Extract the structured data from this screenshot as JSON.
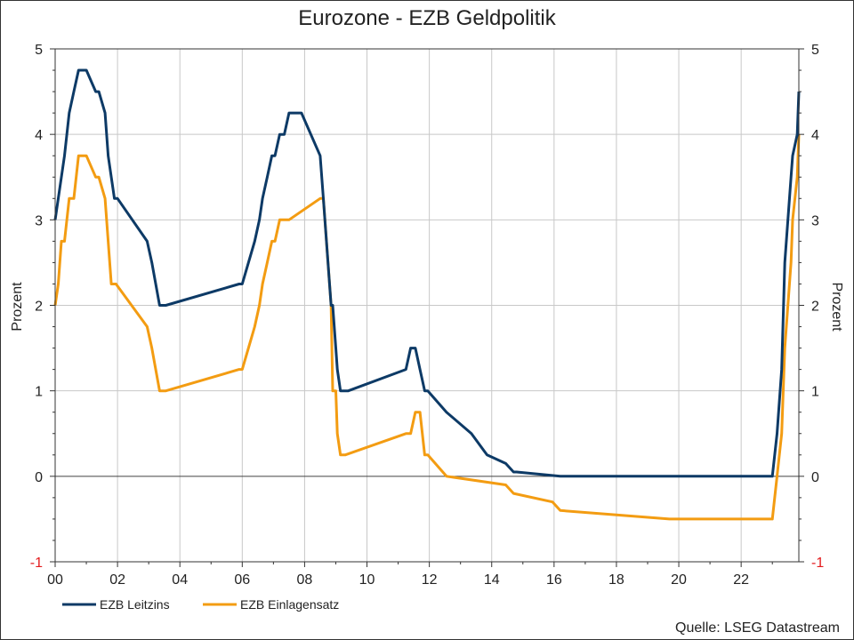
{
  "chart_data": {
    "type": "line",
    "title": "Eurozone - EZB Geldpolitik",
    "ylabel_left": "Prozent",
    "ylabel_right": "Prozent",
    "source": "Quelle: LSEG Datastream",
    "xlim": [
      2000.0,
      2023.85
    ],
    "ylim": [
      -1,
      5
    ],
    "x_ticks": [
      2000,
      2002,
      2004,
      2006,
      2008,
      2010,
      2012,
      2014,
      2016,
      2018,
      2020,
      2022
    ],
    "x_tick_labels": [
      "00",
      "02",
      "04",
      "06",
      "08",
      "10",
      "12",
      "14",
      "16",
      "18",
      "20",
      "22"
    ],
    "y_ticks": [
      -1,
      0,
      1,
      2,
      3,
      4,
      5
    ],
    "y_tick_labels": [
      "-1",
      "0",
      "1",
      "2",
      "3",
      "4",
      "5"
    ],
    "grid": true,
    "legend_position": "bottom-left",
    "colors": {
      "negative_tick": "#e31a1c",
      "grid": "#c8c8c8",
      "zero_line": "#404040"
    },
    "series": [
      {
        "name": "EZB Leitzins",
        "color": "#0d3a66",
        "x": [
          2000.0,
          2000.1,
          2000.2,
          2000.3,
          2000.45,
          2000.6,
          2000.75,
          2000.85,
          2001.0,
          2001.3,
          2001.4,
          2001.6,
          2001.7,
          2001.8,
          2001.9,
          2001.95,
          2002.0,
          2002.95,
          2003.1,
          2003.35,
          2003.5,
          2003.55,
          2005.9,
          2006.0,
          2006.2,
          2006.4,
          2006.55,
          2006.65,
          2006.8,
          2006.95,
          2007.05,
          2007.2,
          2007.35,
          2007.5,
          2007.65,
          2007.8,
          2007.9,
          2008.5,
          2008.6,
          2008.75,
          2008.85,
          2008.9,
          2009.0,
          2009.05,
          2009.15,
          2009.2,
          2009.3,
          2009.4,
          2011.25,
          2011.4,
          2011.55,
          2011.7,
          2011.85,
          2011.95,
          2012.55,
          2013.35,
          2013.85,
          2014.45,
          2014.7,
          2014.8,
          2016.2,
          2023.0,
          2023.15,
          2023.3,
          2023.4,
          2023.5,
          2023.6,
          2023.65,
          2023.8,
          2024.0
        ],
        "y": [
          3.0,
          3.25,
          3.5,
          3.75,
          4.25,
          4.5,
          4.75,
          4.75,
          4.75,
          4.5,
          4.5,
          4.25,
          3.75,
          3.5,
          3.25,
          3.25,
          3.25,
          2.75,
          2.5,
          2.0,
          2.0,
          2.0,
          2.25,
          2.25,
          2.5,
          2.75,
          3.0,
          3.25,
          3.5,
          3.75,
          3.75,
          4.0,
          4.0,
          4.25,
          4.25,
          4.25,
          4.25,
          3.75,
          3.25,
          2.5,
          2.0,
          2.0,
          1.5,
          1.25,
          1.0,
          1.0,
          1.0,
          1.0,
          1.25,
          1.5,
          1.5,
          1.25,
          1.0,
          1.0,
          0.75,
          0.5,
          0.25,
          0.15,
          0.05,
          0.05,
          0.0,
          0.0,
          0.5,
          1.25,
          2.5,
          3.0,
          3.5,
          3.75,
          4.0,
          4.5
        ]
      },
      {
        "name": "EZB Einlagensatz",
        "color": "#f39c12",
        "x": [
          2000.0,
          2000.1,
          2000.2,
          2000.3,
          2000.45,
          2000.6,
          2000.75,
          2001.0,
          2001.3,
          2001.4,
          2001.6,
          2001.7,
          2001.8,
          2001.95,
          2002.95,
          2003.1,
          2003.35,
          2003.55,
          2005.9,
          2006.0,
          2006.2,
          2006.4,
          2006.55,
          2006.65,
          2006.8,
          2006.95,
          2007.05,
          2007.2,
          2007.35,
          2007.5,
          2008.5,
          2008.6,
          2008.75,
          2008.85,
          2008.9,
          2009.0,
          2009.05,
          2009.15,
          2009.2,
          2009.3,
          2011.25,
          2011.4,
          2011.55,
          2011.7,
          2011.85,
          2011.95,
          2012.55,
          2014.45,
          2014.7,
          2015.95,
          2016.2,
          2019.7,
          2023.0,
          2023.15,
          2023.3,
          2023.4,
          2023.5,
          2023.6,
          2023.65,
          2023.8,
          2024.0
        ],
        "y": [
          2.0,
          2.25,
          2.75,
          2.75,
          3.25,
          3.25,
          3.75,
          3.75,
          3.5,
          3.5,
          3.25,
          2.75,
          2.25,
          2.25,
          1.75,
          1.5,
          1.0,
          1.0,
          1.25,
          1.25,
          1.5,
          1.75,
          2.0,
          2.25,
          2.5,
          2.75,
          2.75,
          3.0,
          3.0,
          3.0,
          3.25,
          3.25,
          2.5,
          2.0,
          1.0,
          1.0,
          0.5,
          0.25,
          0.25,
          0.25,
          0.5,
          0.5,
          0.75,
          0.75,
          0.25,
          0.25,
          0.0,
          -0.1,
          -0.2,
          -0.3,
          -0.4,
          -0.5,
          -0.5,
          0.0,
          0.5,
          1.5,
          2.0,
          2.5,
          3.0,
          3.5,
          4.0
        ]
      }
    ]
  }
}
